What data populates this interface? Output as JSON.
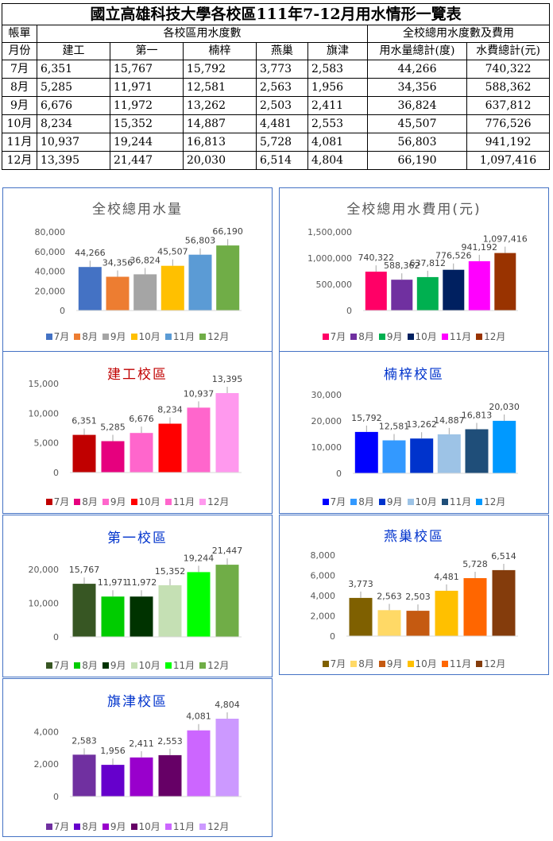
{
  "table": {
    "title": "國立高雄科技大學各校區111年7-12月用水情形一覽表",
    "col_header_a": "帳單",
    "col_header_b": "月份",
    "group_campus": "各校區用水度數",
    "group_total": "全校總用水度數及費用",
    "campuses": [
      "建工",
      "第一",
      "楠梓",
      "燕巢",
      "旗津"
    ],
    "total_usage_label": "用水量總計(度)",
    "total_fee_label": "水費總計(元)",
    "rows": [
      {
        "month": "7月",
        "values": [
          "6,351",
          "15,767",
          "15,792",
          "3,773",
          "2,583"
        ],
        "total_usage": "44,266",
        "total_fee": "740,322"
      },
      {
        "month": "8月",
        "values": [
          "5,285",
          "11,971",
          "12,581",
          "2,563",
          "1,956"
        ],
        "total_usage": "34,356",
        "total_fee": "588,362"
      },
      {
        "month": "9月",
        "values": [
          "6,676",
          "11,972",
          "13,262",
          "2,503",
          "2,411"
        ],
        "total_usage": "36,824",
        "total_fee": "637,812"
      },
      {
        "month": "10月",
        "values": [
          "8,234",
          "15,352",
          "14,887",
          "4,481",
          "2,553"
        ],
        "total_usage": "45,507",
        "total_fee": "776,526"
      },
      {
        "month": "11月",
        "values": [
          "10,937",
          "19,244",
          "16,813",
          "5,728",
          "4,081"
        ],
        "total_usage": "56,803",
        "total_fee": "941,192"
      },
      {
        "month": "12月",
        "values": [
          "13,395",
          "21,447",
          "20,030",
          "6,514",
          "4,804"
        ],
        "total_usage": "66,190",
        "total_fee": "1,097,416"
      }
    ]
  },
  "chart_data": [
    {
      "id": "total-usage",
      "type": "bar",
      "title": "全校總用水量",
      "title_color": "#595959",
      "categories": [
        "7月",
        "8月",
        "9月",
        "10月",
        "11月",
        "12月"
      ],
      "values": [
        44266,
        34356,
        36824,
        45507,
        56803,
        66190
      ],
      "value_labels": [
        "44,266",
        "34,356",
        "36,824",
        "45,507",
        "56,803",
        "66,190"
      ],
      "colors": [
        "#4472c4",
        "#ed7d31",
        "#a5a5a5",
        "#ffc000",
        "#5b9bd5",
        "#70ad47"
      ],
      "ylim": [
        0,
        80000
      ],
      "yticks": [
        0,
        20000,
        40000,
        60000,
        80000
      ],
      "ytick_labels": [
        "0",
        "20,000",
        "40,000",
        "60,000",
        "80,000"
      ],
      "grid": false,
      "legend": "bottom"
    },
    {
      "id": "total-fee",
      "type": "bar",
      "title": "全校總用水費用(元)",
      "title_color": "#595959",
      "categories": [
        "7月",
        "8月",
        "9月",
        "10月",
        "11月",
        "12月"
      ],
      "values": [
        740322,
        588362,
        637812,
        776526,
        941192,
        1097416
      ],
      "value_labels": [
        "740,322",
        "588,362",
        "637,812",
        "776,526",
        "941,192",
        "1,097,416"
      ],
      "colors": [
        "#ff0066",
        "#7030a0",
        "#00b050",
        "#002060",
        "#ff00ff",
        "#993300"
      ],
      "ylim": [
        0,
        1500000
      ],
      "yticks": [
        0,
        500000,
        1000000,
        1500000
      ],
      "ytick_labels": [
        "0",
        "500,000",
        "1,000,000",
        "1,500,000"
      ],
      "grid": false,
      "legend": "bottom"
    },
    {
      "id": "jiangong",
      "type": "bar",
      "title": "建工校區",
      "title_color": "#c00000",
      "categories": [
        "7月",
        "8月",
        "9月",
        "10月",
        "11月",
        "12月"
      ],
      "values": [
        6351,
        5285,
        6676,
        8234,
        10937,
        13395
      ],
      "value_labels": [
        "6,351",
        "5,285",
        "6,676",
        "8,234",
        "10,937",
        "13,395"
      ],
      "colors": [
        "#c00000",
        "#e6007e",
        "#ff66cc",
        "#ff0000",
        "#ff66cc",
        "#ff99ee"
      ],
      "ylim": [
        0,
        15000
      ],
      "yticks": [
        0,
        5000,
        10000,
        15000
      ],
      "ytick_labels": [
        "0",
        "5,000",
        "10,000",
        "15,000"
      ],
      "grid": false,
      "legend": "bottom"
    },
    {
      "id": "nanzi",
      "type": "bar",
      "title": "楠梓校區",
      "title_color": "#0033cc",
      "categories": [
        "7月",
        "8月",
        "9月",
        "10月",
        "11月",
        "12月"
      ],
      "values": [
        15792,
        12581,
        13262,
        14887,
        16813,
        20030
      ],
      "value_labels": [
        "15,792",
        "12,581",
        "13,262",
        "14,887",
        "16,813",
        "20,030"
      ],
      "colors": [
        "#0000ff",
        "#3399ff",
        "#0033cc",
        "#9dc3e6",
        "#1f4e79",
        "#0099ff"
      ],
      "ylim": [
        0,
        30000
      ],
      "yticks": [
        0,
        10000,
        20000,
        30000
      ],
      "ytick_labels": [
        "0",
        "10,000",
        "20,000",
        "30,000"
      ],
      "grid": false,
      "legend": "bottom"
    },
    {
      "id": "diyi",
      "type": "bar",
      "title": "第一校區",
      "title_color": "#0033cc",
      "categories": [
        "7月",
        "8月",
        "9月",
        "10月",
        "11月",
        "12月"
      ],
      "values": [
        15767,
        11971,
        11972,
        15352,
        19244,
        21447
      ],
      "value_labels": [
        "15,767",
        "11,971",
        "11,972",
        "15,352",
        "19,244",
        "21,447"
      ],
      "colors": [
        "#375623",
        "#00cc00",
        "#003300",
        "#c5e0b4",
        "#00ff00",
        "#70ad47"
      ],
      "ylim": [
        0,
        25000
      ],
      "yticks": [
        0,
        10000,
        20000
      ],
      "ytick_labels": [
        "0",
        "10,000",
        "20,000"
      ],
      "grid": false,
      "legend": "bottom"
    },
    {
      "id": "yanchao",
      "type": "bar",
      "title": "燕巢校區",
      "title_color": "#0033cc",
      "categories": [
        "7月",
        "8月",
        "9月",
        "10月",
        "11月",
        "12月"
      ],
      "values": [
        3773,
        2563,
        2503,
        4481,
        5728,
        6514
      ],
      "value_labels": [
        "3,773",
        "2,563",
        "2,503",
        "4,481",
        "5,728",
        "6,514"
      ],
      "colors": [
        "#7f6000",
        "#ffd966",
        "#c55a11",
        "#ffc000",
        "#ff6600",
        "#843c0c"
      ],
      "ylim": [
        0,
        8000
      ],
      "yticks": [
        0,
        2000,
        4000,
        6000,
        8000
      ],
      "ytick_labels": [
        "0",
        "2,000",
        "4,000",
        "6,000",
        "8,000"
      ],
      "grid": false,
      "legend": "bottom"
    },
    {
      "id": "cijin",
      "type": "bar",
      "title": "旗津校區",
      "title_color": "#0033cc",
      "categories": [
        "7月",
        "8月",
        "9月",
        "10月",
        "11月",
        "12月"
      ],
      "values": [
        2583,
        1956,
        2411,
        2553,
        4081,
        4804
      ],
      "value_labels": [
        "2,583",
        "1,956",
        "2,411",
        "2,553",
        "4,081",
        "4,804"
      ],
      "colors": [
        "#7030a0",
        "#6600cc",
        "#9900cc",
        "#660066",
        "#cc66ff",
        "#cc99ff"
      ],
      "ylim": [
        0,
        5000
      ],
      "yticks": [
        0,
        2000,
        4000
      ],
      "ytick_labels": [
        "0",
        "2,000",
        "4,000"
      ],
      "grid": false,
      "legend": "bottom"
    }
  ]
}
